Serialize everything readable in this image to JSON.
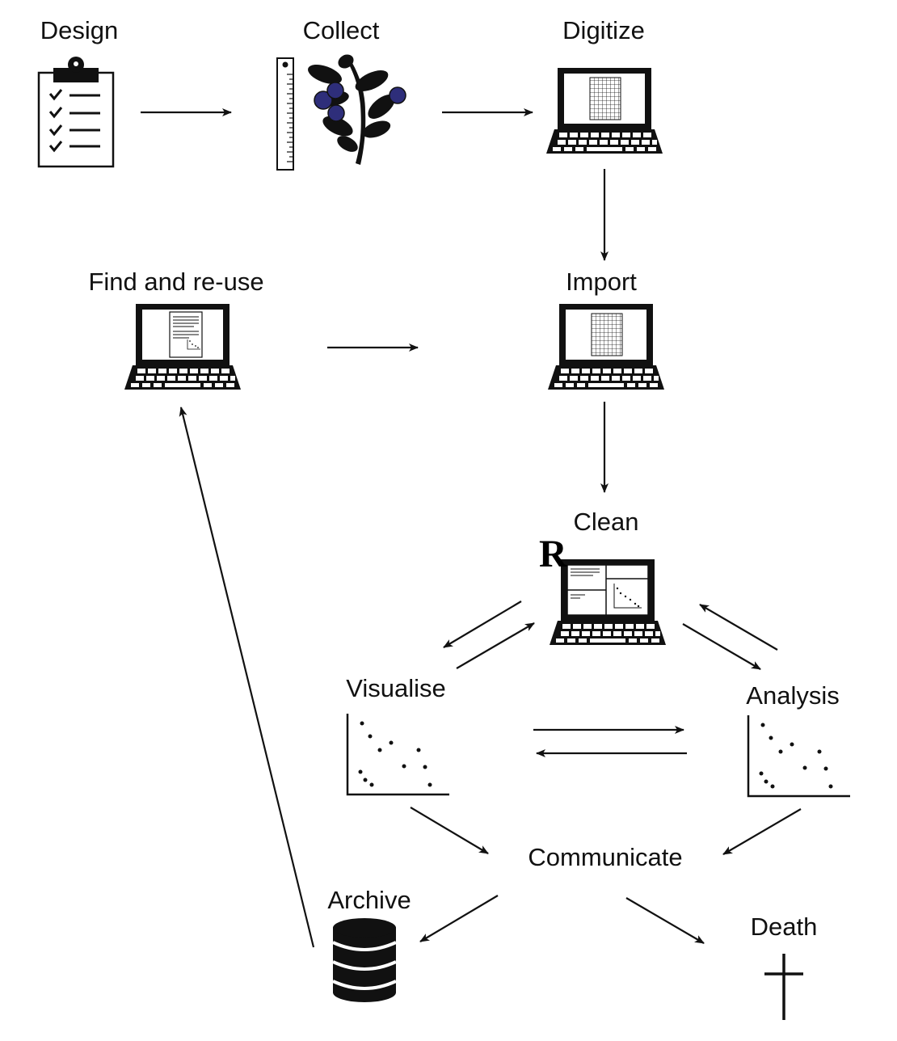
{
  "nodes": {
    "design": {
      "label": "Design",
      "icon": "clipboard-icon"
    },
    "collect": {
      "label": "Collect",
      "icon": "plant-specimen-icon"
    },
    "digitize": {
      "label": "Digitize",
      "icon": "laptop-grid-icon"
    },
    "find_reuse": {
      "label": "Find and re-use",
      "icon": "laptop-document-icon"
    },
    "import": {
      "label": "Import",
      "icon": "laptop-grid-icon"
    },
    "clean": {
      "label": "Clean",
      "icon": "laptop-r-icon",
      "badge": "R"
    },
    "visualise": {
      "label": "Visualise",
      "icon": "scatter-plot-icon"
    },
    "analysis": {
      "label": "Analysis",
      "icon": "scatter-plot-icon"
    },
    "communicate": {
      "label": "Communicate"
    },
    "archive": {
      "label": "Archive",
      "icon": "database-icon"
    },
    "death": {
      "label": "Death",
      "icon": "cross-icon"
    }
  },
  "edges": [
    [
      "design",
      "collect"
    ],
    [
      "collect",
      "digitize"
    ],
    [
      "digitize",
      "import"
    ],
    [
      "find_reuse",
      "import"
    ],
    [
      "import",
      "clean"
    ],
    [
      "clean",
      "visualise"
    ],
    [
      "visualise",
      "clean"
    ],
    [
      "clean",
      "analysis"
    ],
    [
      "analysis",
      "clean"
    ],
    [
      "visualise",
      "analysis"
    ],
    [
      "analysis",
      "visualise"
    ],
    [
      "visualise",
      "communicate"
    ],
    [
      "analysis",
      "communicate"
    ],
    [
      "communicate",
      "archive"
    ],
    [
      "communicate",
      "death"
    ],
    [
      "archive",
      "find_reuse"
    ]
  ],
  "colors": {
    "ink": "#111111",
    "berry": "#2e2e7a"
  }
}
